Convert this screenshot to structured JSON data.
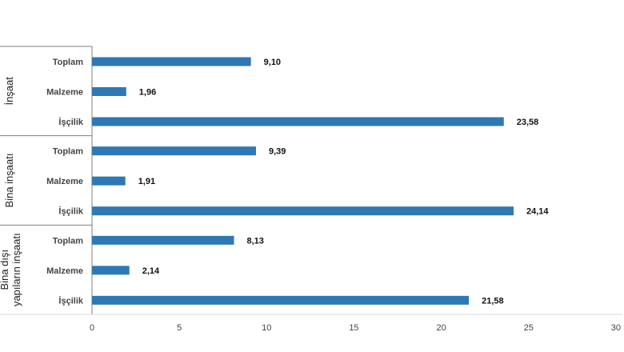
{
  "chart_data": {
    "type": "bar",
    "orientation": "horizontal",
    "bar_color": "#2e78b5",
    "xlim": [
      0,
      30
    ],
    "x_ticks": [
      "0",
      "5",
      "10",
      "15",
      "20",
      "25",
      "30"
    ],
    "grid": false,
    "groups": [
      {
        "label_lines": [
          "İnşaat"
        ],
        "bars": [
          {
            "category": "Toplam",
            "value": 9.1,
            "label": "9,10"
          },
          {
            "category": "Malzeme",
            "value": 1.96,
            "label": "1,96"
          },
          {
            "category": "İşçilik",
            "value": 23.58,
            "label": "23,58"
          }
        ]
      },
      {
        "label_lines": [
          "Bina inşaatı"
        ],
        "bars": [
          {
            "category": "Toplam",
            "value": 9.39,
            "label": "9,39"
          },
          {
            "category": "Malzeme",
            "value": 1.91,
            "label": "1,91"
          },
          {
            "category": "İşçilik",
            "value": 24.14,
            "label": "24,14"
          }
        ]
      },
      {
        "label_lines": [
          "Bina dışı",
          "yapıların inşaatı"
        ],
        "bars": [
          {
            "category": "Toplam",
            "value": 8.13,
            "label": "8,13"
          },
          {
            "category": "Malzeme",
            "value": 2.14,
            "label": "2,14"
          },
          {
            "category": "İşçilik",
            "value": 21.58,
            "label": "21,58"
          }
        ]
      }
    ]
  }
}
